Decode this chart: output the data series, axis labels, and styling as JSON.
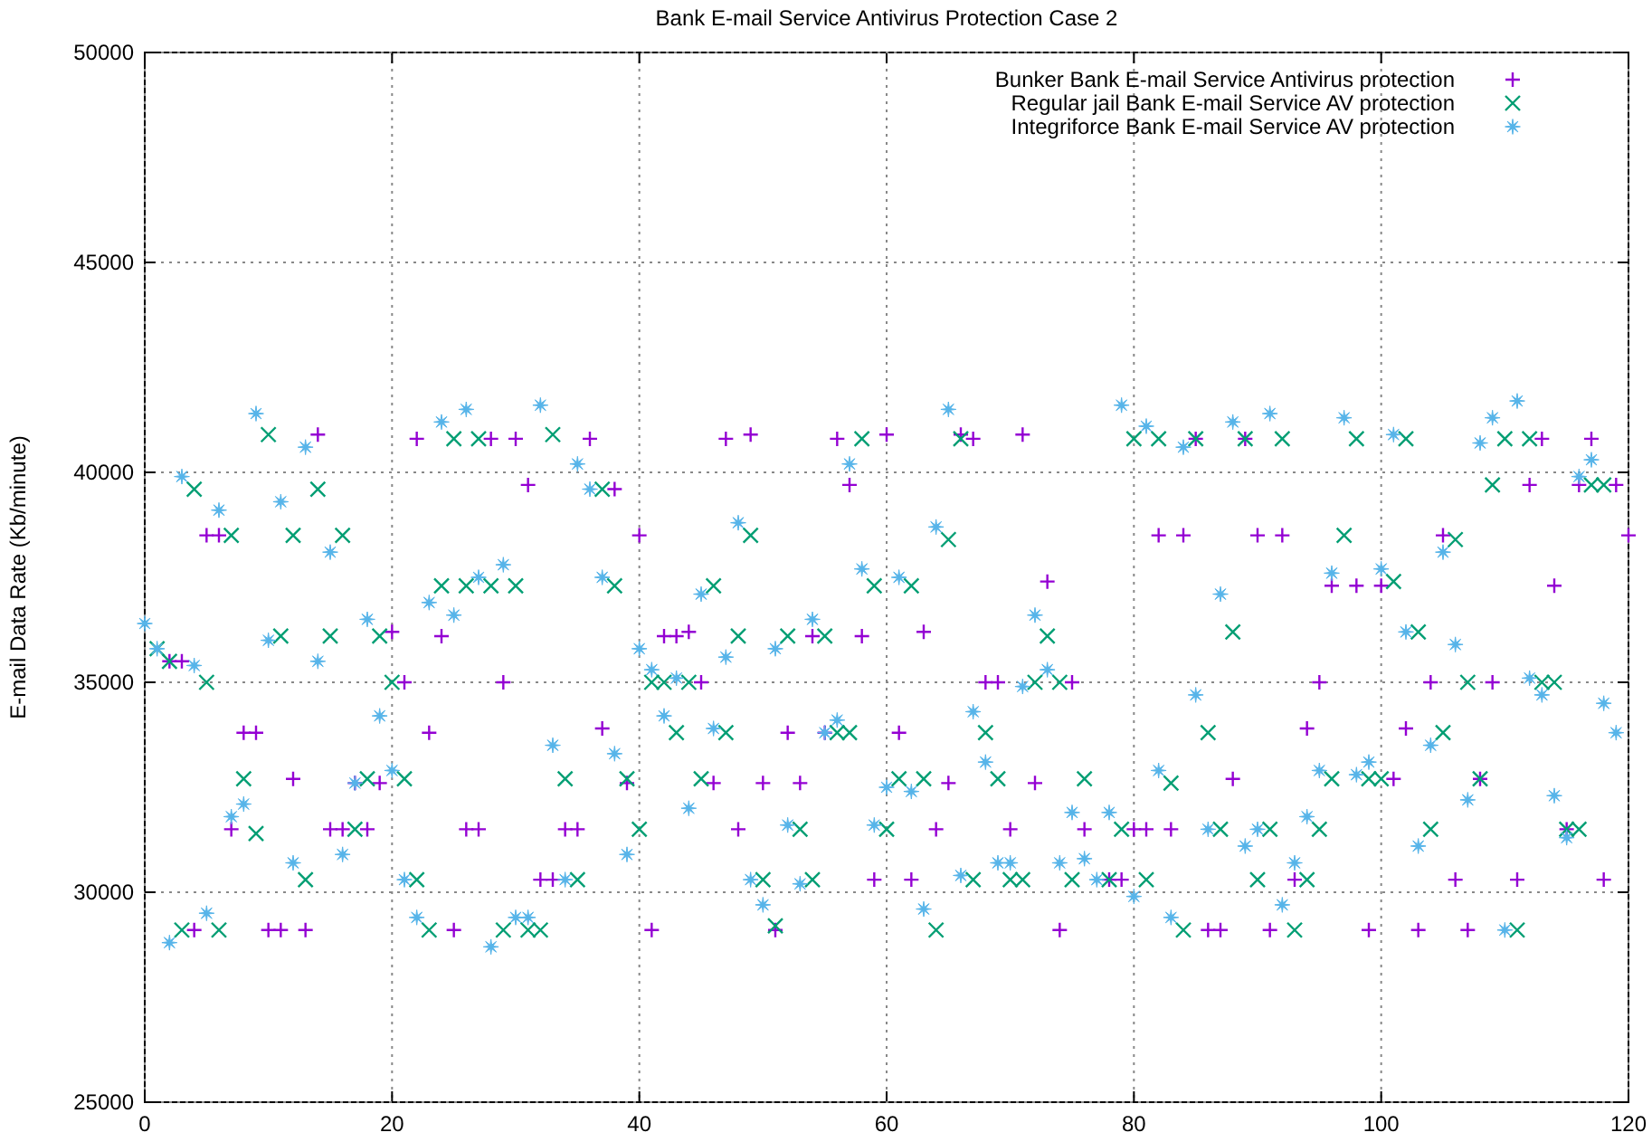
{
  "chart_data": {
    "type": "scatter",
    "title": "Bank E-mail Service Antivirus Protection Case 2",
    "ylabel": "E-mail Data Rate (Kb/minute)",
    "xlim": [
      0,
      120
    ],
    "xticks": [
      0,
      20,
      40,
      60,
      80,
      100,
      120
    ],
    "ylim": [
      25000,
      50000
    ],
    "yticks": [
      25000,
      30000,
      35000,
      40000,
      45000,
      50000
    ],
    "grid": true,
    "legend": "top right",
    "series": [
      {
        "name": "Bunker Bank E-mail Service Antivirus protection",
        "color": "#9400d3",
        "marker": "plus",
        "x": [
          2,
          3,
          4,
          5,
          6,
          7,
          8,
          9,
          10,
          11,
          12,
          13,
          14,
          15,
          16,
          17,
          18,
          19,
          20,
          21,
          22,
          23,
          24,
          25,
          26,
          27,
          28,
          29,
          30,
          31,
          32,
          33,
          34,
          35,
          36,
          37,
          38,
          39,
          40,
          41,
          42,
          43,
          44,
          45,
          46,
          47,
          48,
          49,
          50,
          51,
          52,
          53,
          54,
          55,
          56,
          57,
          58,
          59,
          60,
          61,
          62,
          63,
          64,
          65,
          66,
          67,
          68,
          69,
          70,
          71,
          72,
          73,
          74,
          75,
          76,
          78,
          79,
          80,
          81,
          82,
          83,
          84,
          85,
          86,
          87,
          88,
          89,
          90,
          91,
          92,
          93,
          94,
          95,
          96,
          98,
          99,
          100,
          101,
          102,
          103,
          104,
          105,
          106,
          107,
          108,
          109,
          111,
          112,
          113,
          114,
          115,
          116,
          117,
          118,
          119,
          120
        ],
        "values": [
          35500,
          35500,
          29100,
          38500,
          38500,
          31500,
          33800,
          33800,
          29100,
          29100,
          32700,
          29100,
          40900,
          31500,
          31500,
          32600,
          31500,
          32600,
          36200,
          35000,
          40800,
          33800,
          36100,
          29100,
          31500,
          31500,
          40800,
          35000,
          40800,
          39700,
          30300,
          30300,
          31500,
          31500,
          40800,
          33900,
          39600,
          32600,
          38500,
          29100,
          36100,
          36100,
          36200,
          35000,
          32600,
          40800,
          31500,
          40900,
          32600,
          29100,
          33800,
          32600,
          36100,
          33800,
          40800,
          39700,
          36100,
          30300,
          40900,
          33800,
          30300,
          36200,
          31500,
          32600,
          40900,
          40800,
          35000,
          35000,
          31500,
          40900,
          32600,
          37400,
          29100,
          35000,
          31500,
          30300,
          30300,
          31500,
          31500,
          38500,
          31500,
          38500,
          40800,
          29100,
          29100,
          32700,
          40800,
          38500,
          29100,
          38500,
          30300,
          33900,
          35000,
          37300,
          37300,
          29100,
          37300,
          32700,
          33900,
          29100,
          35000,
          38500,
          30300,
          29100,
          32700,
          35000,
          30300,
          39700,
          40800,
          37300,
          31500,
          39700,
          40800,
          30300,
          39700,
          38500
        ]
      },
      {
        "name": "Regular jail Bank E-mail Service AV protection",
        "color": "#009e73",
        "marker": "cross",
        "x": [
          1,
          2,
          3,
          4,
          5,
          6,
          7,
          8,
          9,
          10,
          11,
          12,
          13,
          14,
          15,
          16,
          17,
          18,
          19,
          20,
          21,
          22,
          23,
          24,
          25,
          26,
          27,
          28,
          29,
          30,
          31,
          32,
          33,
          34,
          35,
          37,
          38,
          39,
          40,
          41,
          42,
          43,
          44,
          45,
          46,
          47,
          48,
          49,
          50,
          51,
          52,
          53,
          54,
          55,
          56,
          57,
          58,
          59,
          60,
          61,
          62,
          63,
          64,
          65,
          66,
          67,
          68,
          69,
          70,
          71,
          72,
          73,
          74,
          75,
          76,
          78,
          79,
          80,
          81,
          82,
          83,
          84,
          85,
          86,
          87,
          88,
          89,
          90,
          91,
          92,
          93,
          94,
          95,
          96,
          97,
          98,
          99,
          100,
          101,
          102,
          103,
          104,
          105,
          106,
          107,
          108,
          109,
          110,
          111,
          112,
          113,
          114,
          115,
          116,
          117,
          118
        ],
        "values": [
          35800,
          35500,
          29100,
          39600,
          35000,
          29100,
          38500,
          32700,
          31400,
          40900,
          36100,
          38500,
          30300,
          39600,
          36100,
          38500,
          31500,
          32700,
          36100,
          35000,
          32700,
          30300,
          29100,
          37300,
          40800,
          37300,
          40800,
          37300,
          29100,
          37300,
          29100,
          29100,
          40900,
          32700,
          30300,
          39600,
          37300,
          32700,
          31500,
          35000,
          35000,
          33800,
          35000,
          32700,
          37300,
          33800,
          36100,
          38500,
          30300,
          29200,
          36100,
          31500,
          30300,
          36100,
          33800,
          33800,
          40800,
          37300,
          31500,
          32700,
          37300,
          32700,
          29100,
          38400,
          40800,
          30300,
          33800,
          32700,
          30300,
          30300,
          35000,
          36100,
          35000,
          30300,
          32700,
          30300,
          31500,
          40800,
          30300,
          40800,
          32600,
          29100,
          40800,
          33800,
          31500,
          36200,
          40800,
          30300,
          31500,
          40800,
          29100,
          30300,
          31500,
          32700,
          38500,
          40800,
          32700,
          32700,
          37400,
          40800,
          36200,
          31500,
          33800,
          38400,
          35000,
          32700,
          39700,
          40800,
          29100,
          40800,
          35000,
          35000,
          31500,
          31500,
          39700,
          39700
        ]
      },
      {
        "name": "Integriforce Bank E-mail Service AV protection",
        "color": "#56b4e9",
        "marker": "star",
        "x": [
          0,
          1,
          2,
          3,
          4,
          5,
          6,
          7,
          8,
          9,
          10,
          11,
          12,
          13,
          14,
          15,
          16,
          17,
          18,
          19,
          20,
          21,
          22,
          23,
          24,
          25,
          26,
          27,
          28,
          29,
          30,
          31,
          32,
          33,
          34,
          35,
          36,
          37,
          38,
          39,
          40,
          41,
          42,
          43,
          44,
          45,
          46,
          47,
          48,
          49,
          50,
          51,
          52,
          53,
          54,
          55,
          56,
          57,
          58,
          59,
          60,
          61,
          62,
          63,
          64,
          65,
          66,
          67,
          68,
          69,
          70,
          71,
          72,
          73,
          74,
          75,
          76,
          77,
          78,
          79,
          80,
          81,
          82,
          83,
          84,
          85,
          86,
          87,
          88,
          89,
          90,
          91,
          92,
          93,
          94,
          95,
          96,
          97,
          98,
          99,
          100,
          101,
          102,
          103,
          104,
          105,
          106,
          107,
          108,
          109,
          110,
          111,
          112,
          113,
          114,
          115,
          116,
          117,
          118,
          119
        ],
        "values": [
          36400,
          35800,
          28800,
          39900,
          35400,
          29500,
          39100,
          31800,
          32100,
          41400,
          36000,
          39300,
          30700,
          40600,
          35500,
          38100,
          30900,
          32600,
          36500,
          34200,
          32900,
          30300,
          29400,
          36900,
          41200,
          36600,
          41500,
          37500,
          28700,
          37800,
          29400,
          29400,
          41600,
          33500,
          30300,
          40200,
          39600,
          37500,
          33300,
          30900,
          35800,
          35300,
          34200,
          35100,
          32000,
          37100,
          33900,
          35600,
          38800,
          30300,
          29700,
          35800,
          31600,
          30200,
          36500,
          33800,
          34100,
          40200,
          37700,
          31600,
          32500,
          37500,
          32400,
          29600,
          38700,
          41500,
          30400,
          34300,
          33100,
          30700,
          30700,
          34900,
          36600,
          35300,
          30700,
          31900,
          30800,
          30300,
          31900,
          41600,
          29900,
          41100,
          32900,
          29400,
          40600,
          34700,
          31500,
          37100,
          41200,
          31100,
          31500,
          41400,
          29700,
          30700,
          31800,
          32900,
          37600,
          41300,
          32800,
          33100,
          37700,
          40900,
          36200,
          31100,
          33500,
          38100,
          35900,
          32200,
          40700,
          41300,
          29100,
          41700,
          35100,
          34700,
          32300,
          31300,
          39900,
          40300,
          34500,
          33800
        ]
      }
    ]
  }
}
